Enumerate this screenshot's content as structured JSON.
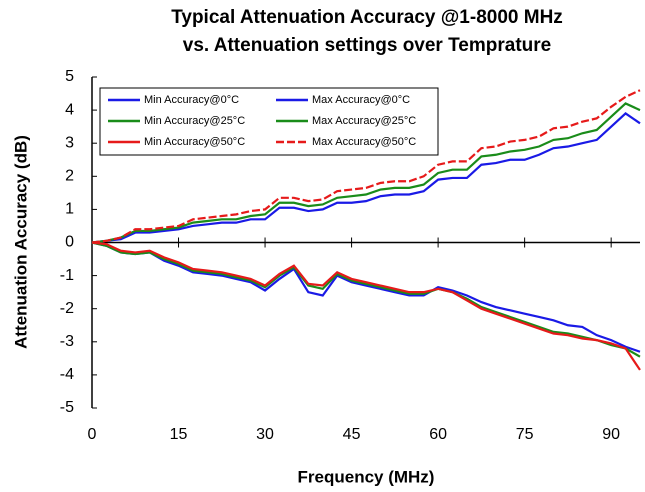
{
  "chart_data": {
    "type": "line",
    "title": [
      "Typical Attenuation Accuracy @1-8000 MHz",
      "vs. Attenuation settings over Temprature"
    ],
    "x_label": "Frequency (MHz)",
    "y_label": "Attenuation Accuracy (dB)",
    "x": [
      0,
      2.5,
      5,
      7.5,
      10,
      12.5,
      15,
      17.5,
      20,
      22.5,
      25,
      27.5,
      30,
      32.5,
      35,
      37.5,
      40,
      42.5,
      45,
      47.5,
      50,
      52.5,
      55,
      57.5,
      60,
      62.5,
      65,
      67.5,
      70,
      72.5,
      75,
      77.5,
      80,
      82.5,
      85,
      87.5,
      90,
      92.5,
      95
    ],
    "xlim": [
      0,
      95
    ],
    "xticks": [
      0,
      15,
      30,
      45,
      60,
      75,
      90
    ],
    "ylim": [
      -5,
      5
    ],
    "yticks": [
      -5,
      -4,
      -3,
      -2,
      -1,
      0,
      1,
      2,
      3,
      4,
      5
    ],
    "grid": false,
    "legend_position": "upper left",
    "series": [
      {
        "name": "Min Accuracy@0°C",
        "color": "#1a1ae6",
        "dash": false,
        "values": [
          0,
          -0.1,
          -0.3,
          -0.35,
          -0.3,
          -0.55,
          -0.7,
          -0.9,
          -0.95,
          -1.0,
          -1.1,
          -1.2,
          -1.45,
          -1.1,
          -0.8,
          -1.5,
          -1.6,
          -1.0,
          -1.2,
          -1.3,
          -1.4,
          -1.5,
          -1.6,
          -1.6,
          -1.35,
          -1.45,
          -1.6,
          -1.8,
          -1.95,
          -2.05,
          -2.15,
          -2.25,
          -2.35,
          -2.5,
          -2.55,
          -2.8,
          -2.95,
          -3.15,
          -3.3
        ]
      },
      {
        "name": "Max Accuracy@0°C",
        "color": "#1a1ae6",
        "dash": false,
        "values": [
          0,
          0.05,
          0.1,
          0.3,
          0.3,
          0.35,
          0.4,
          0.5,
          0.55,
          0.6,
          0.6,
          0.7,
          0.7,
          1.05,
          1.05,
          0.95,
          1.0,
          1.2,
          1.2,
          1.25,
          1.4,
          1.45,
          1.45,
          1.55,
          1.9,
          1.95,
          1.95,
          2.35,
          2.4,
          2.5,
          2.5,
          2.65,
          2.85,
          2.9,
          3.0,
          3.1,
          3.5,
          3.9,
          3.6
        ]
      },
      {
        "name": "Min Accuracy@25°C",
        "color": "#1a8c1a",
        "dash": false,
        "values": [
          0,
          -0.1,
          -0.3,
          -0.35,
          -0.3,
          -0.5,
          -0.65,
          -0.85,
          -0.9,
          -0.95,
          -1.05,
          -1.15,
          -1.35,
          -1.0,
          -0.75,
          -1.3,
          -1.4,
          -0.95,
          -1.15,
          -1.25,
          -1.35,
          -1.45,
          -1.55,
          -1.55,
          -1.4,
          -1.5,
          -1.7,
          -1.95,
          -2.1,
          -2.25,
          -2.4,
          -2.55,
          -2.7,
          -2.75,
          -2.85,
          -2.95,
          -3.1,
          -3.2,
          -3.45
        ]
      },
      {
        "name": "Max Accuracy@25°C",
        "color": "#1a8c1a",
        "dash": false,
        "values": [
          0,
          0.05,
          0.15,
          0.35,
          0.35,
          0.4,
          0.45,
          0.6,
          0.65,
          0.7,
          0.7,
          0.8,
          0.85,
          1.2,
          1.2,
          1.1,
          1.15,
          1.35,
          1.4,
          1.45,
          1.6,
          1.65,
          1.65,
          1.75,
          2.1,
          2.2,
          2.2,
          2.6,
          2.65,
          2.75,
          2.8,
          2.9,
          3.1,
          3.15,
          3.3,
          3.4,
          3.8,
          4.2,
          4.0
        ]
      },
      {
        "name": "Min Accuracy@50°C",
        "color": "#e61a1a",
        "dash": false,
        "values": [
          0,
          -0.05,
          -0.25,
          -0.3,
          -0.25,
          -0.45,
          -0.6,
          -0.8,
          -0.85,
          -0.9,
          -1.0,
          -1.1,
          -1.3,
          -0.95,
          -0.7,
          -1.25,
          -1.3,
          -0.9,
          -1.1,
          -1.2,
          -1.3,
          -1.4,
          -1.5,
          -1.5,
          -1.4,
          -1.5,
          -1.75,
          -2.0,
          -2.15,
          -2.3,
          -2.45,
          -2.6,
          -2.75,
          -2.8,
          -2.9,
          -2.95,
          -3.05,
          -3.2,
          -3.85
        ]
      },
      {
        "name": "Max Accuracy@50°C",
        "color": "#e61a1a",
        "dash": true,
        "values": [
          0,
          0.05,
          0.15,
          0.4,
          0.4,
          0.45,
          0.5,
          0.7,
          0.75,
          0.8,
          0.85,
          0.95,
          1.0,
          1.35,
          1.35,
          1.25,
          1.3,
          1.55,
          1.6,
          1.65,
          1.8,
          1.85,
          1.85,
          2.0,
          2.35,
          2.45,
          2.45,
          2.85,
          2.9,
          3.05,
          3.1,
          3.2,
          3.45,
          3.5,
          3.65,
          3.75,
          4.1,
          4.4,
          4.6
        ]
      }
    ]
  }
}
